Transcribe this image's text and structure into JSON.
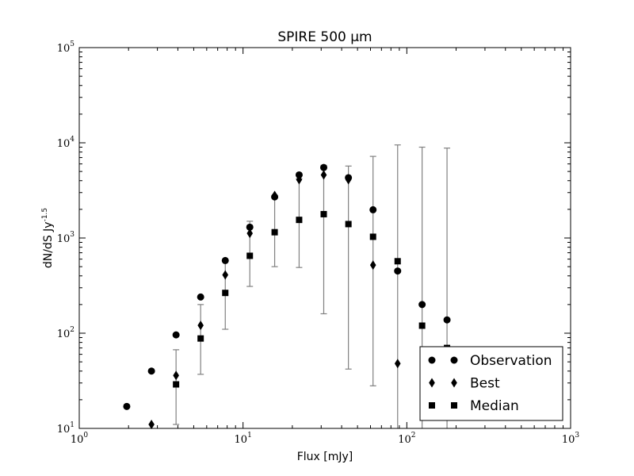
{
  "chart_data": {
    "type": "scatter",
    "title": "SPIRE 500 μm",
    "xlabel": "Flux [mJy]",
    "ylabel": "dN/dS Jy^-1.5",
    "x_scale": "log",
    "y_scale": "log",
    "xlim": [
      1,
      1000
    ],
    "ylim": [
      10,
      100000
    ],
    "x_ticks": [
      {
        "value": 1,
        "label": "10^0"
      },
      {
        "value": 10,
        "label": "10^1"
      },
      {
        "value": 100,
        "label": "10^2"
      },
      {
        "value": 1000,
        "label": "10^3"
      }
    ],
    "y_ticks": [
      {
        "value": 10,
        "label": "10^1"
      },
      {
        "value": 100,
        "label": "10^2"
      },
      {
        "value": 1000,
        "label": "10^3"
      },
      {
        "value": 10000,
        "label": "10^4"
      },
      {
        "value": 100000,
        "label": "10^5"
      }
    ],
    "grid": false,
    "legend_position": "lower-right",
    "errorbar_color": "#808080",
    "series": [
      {
        "name": "Observation",
        "marker": "circle",
        "color": "#000000",
        "x": [
          1.95,
          2.76,
          3.9,
          5.51,
          7.79,
          11.0,
          15.6,
          22.0,
          31.1,
          44.0,
          62.2,
          87.9,
          124,
          176
        ],
        "y": [
          17,
          40,
          96,
          240,
          580,
          1300,
          2700,
          4600,
          5500,
          4300,
          1980,
          450,
          200,
          138
        ]
      },
      {
        "name": "Best",
        "marker": "diamond",
        "color": "#000000",
        "x": [
          2.76,
          3.9,
          5.51,
          7.79,
          11.0,
          15.6,
          22.0,
          31.1,
          44.0,
          62.2,
          87.9
        ],
        "y": [
          11,
          36,
          121,
          410,
          1120,
          2800,
          4100,
          4600,
          4100,
          520,
          48
        ]
      },
      {
        "name": "Median",
        "marker": "square",
        "color": "#000000",
        "x": [
          3.9,
          5.51,
          7.79,
          11.0,
          15.6,
          22.0,
          31.1,
          44.0,
          62.2,
          87.9,
          124,
          176
        ],
        "y": [
          29,
          88,
          265,
          650,
          1150,
          1550,
          1780,
          1400,
          1030,
          570,
          120,
          70
        ],
        "yerr_low": [
          11,
          37,
          110,
          310,
          500,
          490,
          160,
          42,
          28,
          10,
          10,
          10
        ],
        "yerr_high": [
          67,
          200,
          580,
          1500,
          2650,
          4200,
          5800,
          5700,
          7200,
          9500,
          9000,
          8800
        ]
      }
    ]
  }
}
